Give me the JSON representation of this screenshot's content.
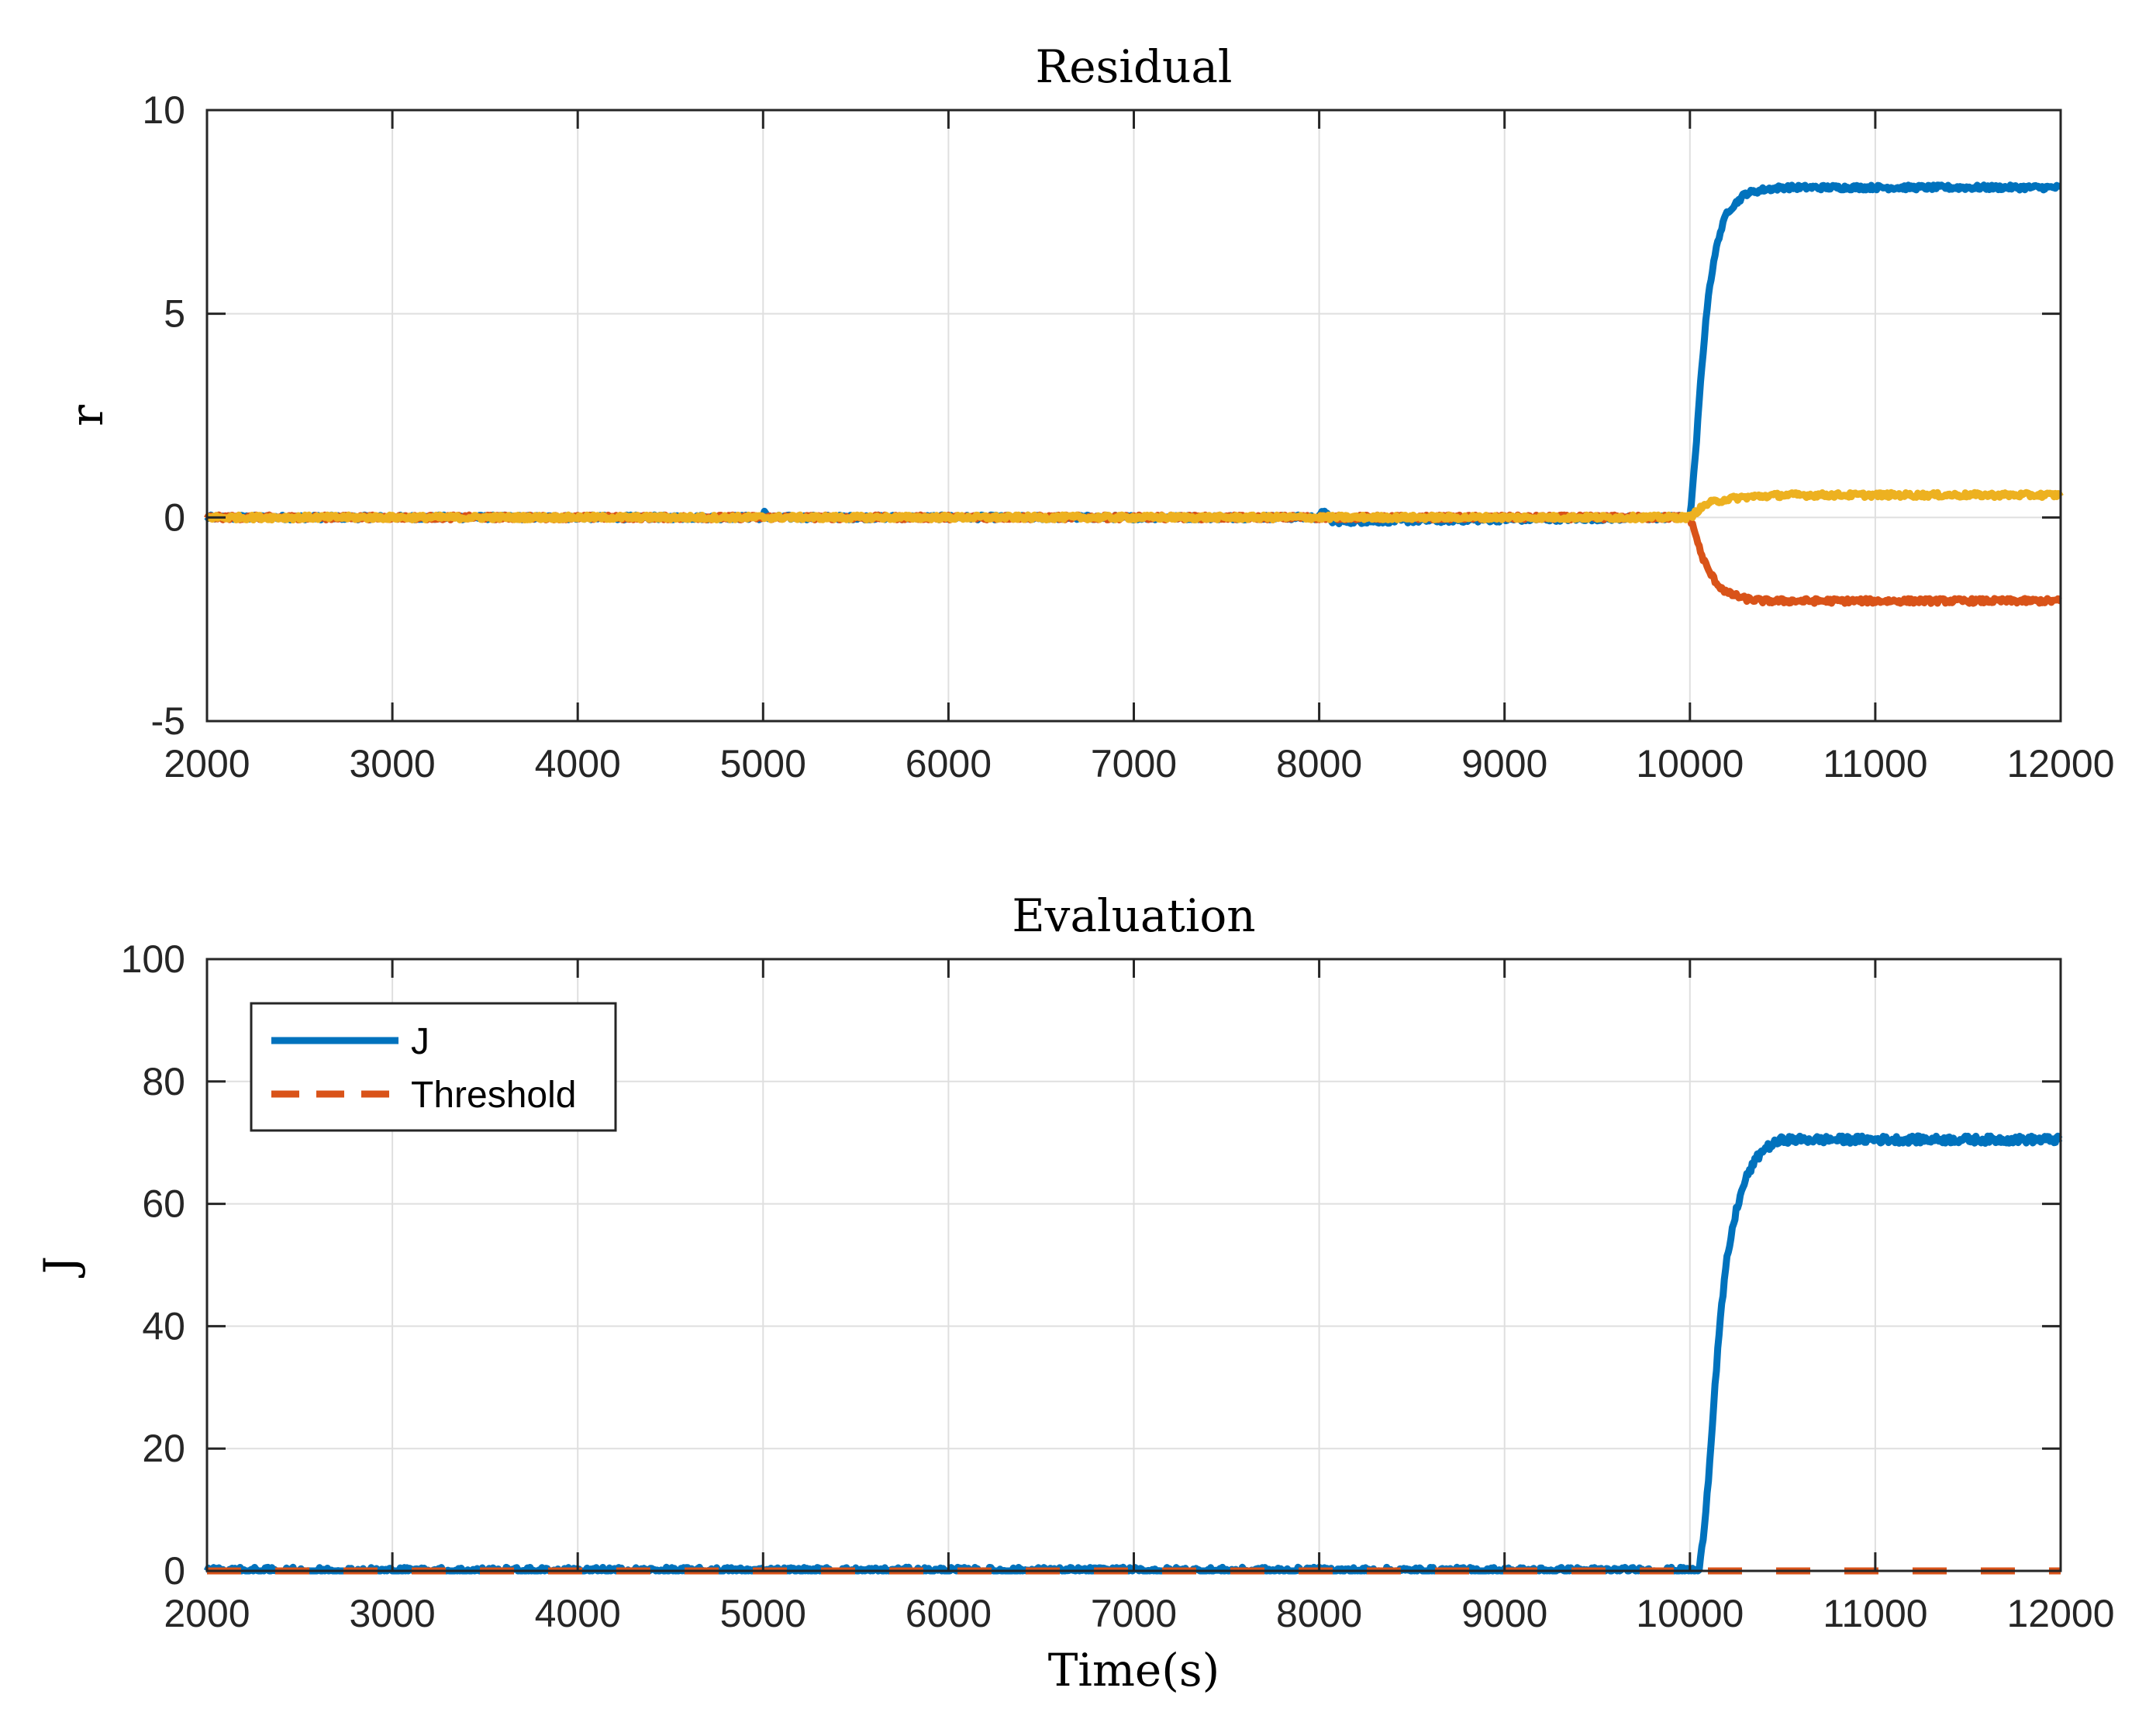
{
  "chart_data": [
    {
      "type": "line",
      "title": "Residual",
      "xlabel": "",
      "ylabel": "r",
      "xlim": [
        2000,
        12000
      ],
      "ylim": [
        -5,
        10
      ],
      "xticks": [
        2000,
        3000,
        4000,
        5000,
        6000,
        7000,
        8000,
        9000,
        10000,
        11000,
        12000
      ],
      "xtick_labels": [
        "2000",
        "3000",
        "4000",
        "5000",
        "6000",
        "7000",
        "8000",
        "9000",
        "10000",
        "11000",
        "12000"
      ],
      "yticks": [
        -5,
        0,
        5,
        10
      ],
      "ytick_labels": [
        "-5",
        "0",
        "5",
        "10"
      ],
      "grid": true,
      "legend": null,
      "series": [
        {
          "color": "#0072BD",
          "x": [
            2000,
            5000,
            5010,
            5030,
            8000,
            8030,
            8060,
            9980,
            10000,
            10030,
            10060,
            10100,
            10150,
            10200,
            10300,
            10400,
            10500,
            10700,
            11000,
            11300,
            11600,
            12000
          ],
          "y": [
            0,
            0,
            0.15,
            0,
            0,
            0.2,
            -0.1,
            0,
            0,
            1.5,
            3.5,
            5.5,
            6.8,
            7.5,
            7.95,
            8.05,
            8.1,
            8.1,
            8.1,
            8.1,
            8.1,
            8.1
          ]
        },
        {
          "color": "#D95319",
          "x": [
            2000,
            9980,
            10000,
            10030,
            10060,
            10100,
            10150,
            10200,
            10300,
            10400,
            10600,
            11000,
            11500,
            12000
          ],
          "y": [
            0,
            0,
            0,
            -0.4,
            -0.9,
            -1.3,
            -1.65,
            -1.85,
            -2.0,
            -2.05,
            -2.05,
            -2.05,
            -2.05,
            -2.05
          ]
        },
        {
          "color": "#EDB120",
          "x": [
            2000,
            9980,
            10000,
            10050,
            10100,
            10200,
            10300,
            10500,
            11000,
            11500,
            12000
          ],
          "y": [
            0,
            0,
            0,
            0.2,
            0.35,
            0.45,
            0.5,
            0.55,
            0.55,
            0.55,
            0.55
          ]
        }
      ]
    },
    {
      "type": "line",
      "title": "Evaluation",
      "xlabel": "Time(s)",
      "ylabel": "J",
      "xlim": [
        2000,
        12000
      ],
      "ylim": [
        0,
        100
      ],
      "xticks": [
        2000,
        3000,
        4000,
        5000,
        6000,
        7000,
        8000,
        9000,
        10000,
        11000,
        12000
      ],
      "xtick_labels": [
        "2000",
        "3000",
        "4000",
        "5000",
        "6000",
        "7000",
        "8000",
        "9000",
        "10000",
        "11000",
        "12000"
      ],
      "yticks": [
        0,
        20,
        40,
        60,
        80,
        100
      ],
      "ytick_labels": [
        "0",
        "20",
        "40",
        "60",
        "80",
        "100"
      ],
      "grid": true,
      "legend": "top-left",
      "series": [
        {
          "name": "J",
          "color": "#0072BD",
          "style": "solid",
          "x": [
            2000,
            10050,
            10070,
            10100,
            10130,
            10160,
            10200,
            10250,
            10300,
            10350,
            10400,
            10500,
            10700,
            11000,
            11300,
            11600,
            12000
          ],
          "y": [
            0,
            0,
            5,
            15,
            28,
            40,
            51,
            59,
            64,
            67,
            69,
            70.5,
            70.5,
            70.5,
            70.5,
            70.5,
            70.5
          ]
        },
        {
          "name": "Threshold",
          "color": "#D95319",
          "style": "dashed",
          "x": [
            2000,
            12000
          ],
          "y": [
            0,
            0
          ]
        }
      ]
    }
  ]
}
